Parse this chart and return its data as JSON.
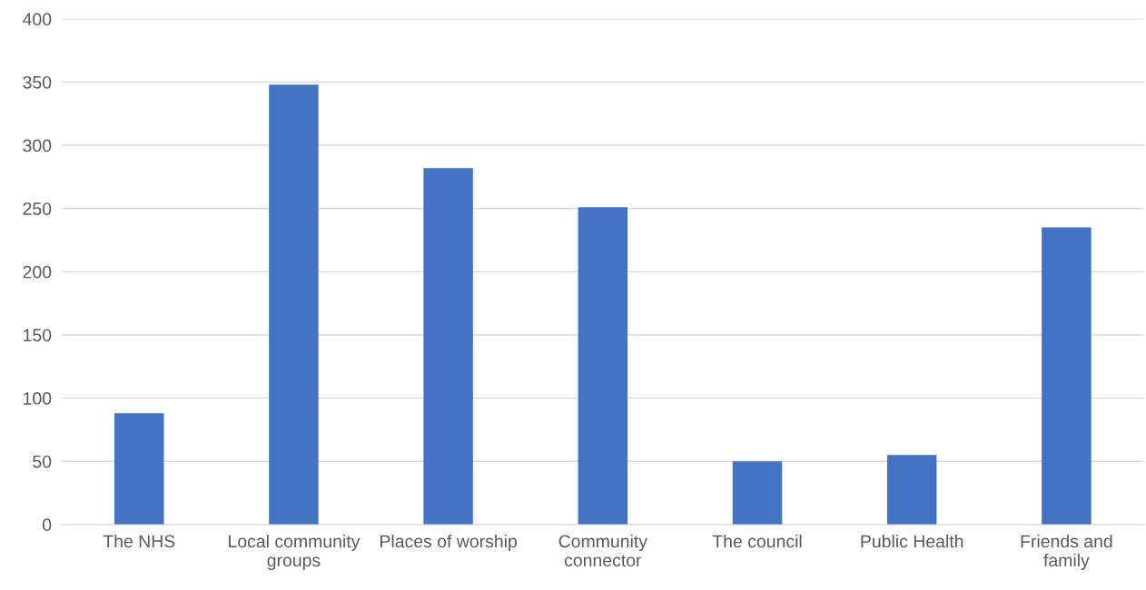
{
  "chart_data": {
    "type": "bar",
    "categories": [
      "The NHS",
      "Local community\ngroups",
      "Places of worship",
      "Community\nconnector",
      "The council",
      "Public Health",
      "Friends and\nfamily"
    ],
    "values": [
      88,
      348,
      282,
      251,
      50,
      55,
      235
    ],
    "color": "#4472c4",
    "ylim": [
      0,
      400
    ],
    "yticks": [
      0,
      50,
      100,
      150,
      200,
      250,
      300,
      350,
      400
    ],
    "grid": "y",
    "legend": false
  }
}
